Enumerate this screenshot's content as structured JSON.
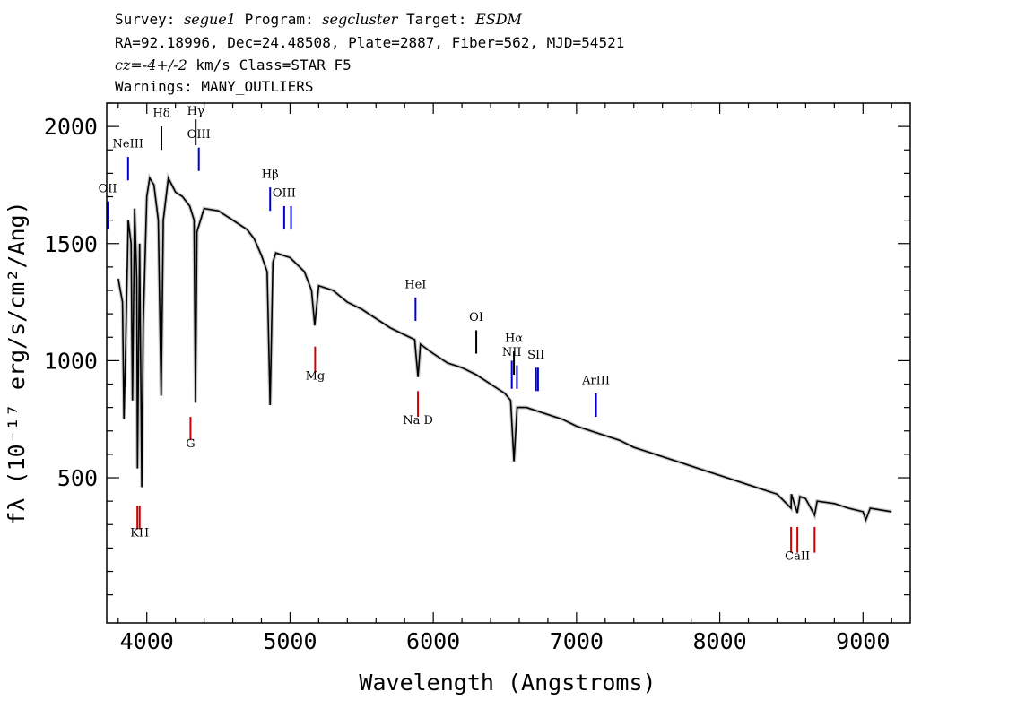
{
  "header": {
    "survey_label": "Survey:",
    "survey": "segue1",
    "program_label": "Program:",
    "program": "segcluster",
    "target_label": "Target:",
    "target": "ESDM",
    "line2": "RA=92.18996, Dec=24.48508, Plate=2887, Fiber=562, MJD=54521",
    "cz": "cz=-4+/-2",
    "cz_units": "km/s Class=STAR F5",
    "warnings": "Warnings: MANY_OUTLIERS"
  },
  "chart_data": {
    "type": "line",
    "title": "",
    "xlabel": "Wavelength (Angstroms)",
    "ylabel": "fλ (10⁻¹⁷ erg/s/cm²/Ang)",
    "xlim": [
      3720,
      9330
    ],
    "ylim": [
      -120,
      2100
    ],
    "xticks": [
      4000,
      5000,
      6000,
      7000,
      8000,
      9000
    ],
    "yticks": [
      500,
      1000,
      1500,
      2000
    ],
    "series": [
      {
        "color": "#000000",
        "points": [
          [
            3800,
            1350
          ],
          [
            3830,
            1250
          ],
          [
            3840,
            750
          ],
          [
            3850,
            1000
          ],
          [
            3870,
            1600
          ],
          [
            3890,
            1500
          ],
          [
            3900,
            830
          ],
          [
            3915,
            1650
          ],
          [
            3930,
            1350
          ],
          [
            3935,
            540
          ],
          [
            3950,
            1500
          ],
          [
            3965,
            460
          ],
          [
            3975,
            1150
          ],
          [
            4000,
            1700
          ],
          [
            4020,
            1780
          ],
          [
            4050,
            1750
          ],
          [
            4080,
            1600
          ],
          [
            4100,
            850
          ],
          [
            4115,
            1600
          ],
          [
            4150,
            1780
          ],
          [
            4200,
            1720
          ],
          [
            4250,
            1700
          ],
          [
            4300,
            1660
          ],
          [
            4330,
            1600
          ],
          [
            4340,
            820
          ],
          [
            4350,
            1550
          ],
          [
            4400,
            1650
          ],
          [
            4500,
            1640
          ],
          [
            4600,
            1600
          ],
          [
            4700,
            1560
          ],
          [
            4750,
            1520
          ],
          [
            4800,
            1450
          ],
          [
            4840,
            1380
          ],
          [
            4861,
            810
          ],
          [
            4880,
            1420
          ],
          [
            4900,
            1460
          ],
          [
            5000,
            1440
          ],
          [
            5100,
            1380
          ],
          [
            5150,
            1300
          ],
          [
            5172,
            1150
          ],
          [
            5200,
            1320
          ],
          [
            5300,
            1300
          ],
          [
            5400,
            1250
          ],
          [
            5500,
            1220
          ],
          [
            5600,
            1180
          ],
          [
            5700,
            1140
          ],
          [
            5800,
            1110
          ],
          [
            5870,
            1090
          ],
          [
            5893,
            930
          ],
          [
            5910,
            1070
          ],
          [
            6000,
            1030
          ],
          [
            6100,
            990
          ],
          [
            6200,
            970
          ],
          [
            6300,
            940
          ],
          [
            6400,
            900
          ],
          [
            6500,
            860
          ],
          [
            6540,
            830
          ],
          [
            6563,
            570
          ],
          [
            6585,
            800
          ],
          [
            6650,
            800
          ],
          [
            6700,
            790
          ],
          [
            6800,
            770
          ],
          [
            6900,
            750
          ],
          [
            7000,
            720
          ],
          [
            7100,
            700
          ],
          [
            7200,
            680
          ],
          [
            7300,
            660
          ],
          [
            7400,
            630
          ],
          [
            7500,
            610
          ],
          [
            7600,
            590
          ],
          [
            7700,
            570
          ],
          [
            7800,
            550
          ],
          [
            7900,
            530
          ],
          [
            8000,
            510
          ],
          [
            8100,
            490
          ],
          [
            8200,
            470
          ],
          [
            8300,
            450
          ],
          [
            8400,
            430
          ],
          [
            8498,
            370
          ],
          [
            8500,
            430
          ],
          [
            8542,
            350
          ],
          [
            8560,
            420
          ],
          [
            8600,
            410
          ],
          [
            8662,
            340
          ],
          [
            8680,
            400
          ],
          [
            8800,
            390
          ],
          [
            8900,
            370
          ],
          [
            9000,
            355
          ],
          [
            9020,
            320
          ],
          [
            9050,
            370
          ],
          [
            9100,
            365
          ],
          [
            9200,
            355
          ]
        ]
      }
    ],
    "lines": [
      {
        "name": "OII",
        "x": 3727,
        "kind": "emission",
        "color": "#0000cc",
        "y0": 1560,
        "y1": 1680,
        "label_y": 1720
      },
      {
        "name": "NeIII",
        "x": 3869,
        "kind": "emission",
        "color": "#0000cc",
        "y0": 1770,
        "y1": 1870,
        "label_y": 1910
      },
      {
        "name": "Hδ",
        "x": 4102,
        "kind": "balmer",
        "color": "#000000",
        "y0": 1900,
        "y1": 2000,
        "label_y": 2040
      },
      {
        "name": "Hγ",
        "x": 4341,
        "kind": "balmer",
        "color": "#000000",
        "y0": 1920,
        "y1": 2030,
        "label_y": 2050
      },
      {
        "name": "OIII",
        "x": 4363,
        "kind": "emission",
        "color": "#0000cc",
        "y0": 1810,
        "y1": 1910,
        "label_y": 1950
      },
      {
        "name": "Hβ",
        "x": 4861,
        "kind": "balmer",
        "color": "#0000cc",
        "y0": 1640,
        "y1": 1740,
        "label_y": 1780
      },
      {
        "name": "OIII",
        "x": 4959,
        "kind": "emission",
        "color": "#0000cc",
        "y0": 1560,
        "y1": 1660,
        "label_y": 1700
      },
      {
        "name": "",
        "x": 5007,
        "kind": "emission",
        "color": "#0000cc",
        "y0": 1560,
        "y1": 1660
      },
      {
        "name": "Mg",
        "x": 5175,
        "kind": "absorption",
        "color": "#cc0000",
        "y0": 950,
        "y1": 1060,
        "label_y": 920
      },
      {
        "name": "HeI",
        "x": 5876,
        "kind": "emission",
        "color": "#0000cc",
        "y0": 1170,
        "y1": 1270,
        "label_y": 1310
      },
      {
        "name": "Na D",
        "x": 5893,
        "kind": "absorption",
        "color": "#cc0000",
        "y0": 760,
        "y1": 870,
        "label_y": 730
      },
      {
        "name": "OI",
        "x": 6300,
        "kind": "emission",
        "color": "#000000",
        "y0": 1030,
        "y1": 1130,
        "label_y": 1170
      },
      {
        "name": "NII",
        "x": 6548,
        "kind": "emission",
        "color": "#0000cc",
        "y0": 880,
        "y1": 1000,
        "label_y": 1020
      },
      {
        "name": "Hα",
        "x": 6563,
        "kind": "balmer",
        "color": "#000000",
        "y0": 940,
        "y1": 1040,
        "label_y": 1080
      },
      {
        "name": "",
        "x": 6584,
        "kind": "emission",
        "color": "#0000cc",
        "y0": 880,
        "y1": 980
      },
      {
        "name": "SII",
        "x": 6717,
        "kind": "emission",
        "color": "#0000cc",
        "y0": 870,
        "y1": 970,
        "label_y": 1010
      },
      {
        "name": "",
        "x": 6731,
        "kind": "emission",
        "color": "#0000cc",
        "y0": 870,
        "y1": 970
      },
      {
        "name": "ArIII",
        "x": 7136,
        "kind": "emission",
        "color": "#0000cc",
        "y0": 760,
        "y1": 860,
        "label_y": 900
      },
      {
        "name": "G",
        "x": 4305,
        "kind": "absorption",
        "color": "#cc0000",
        "y0": 660,
        "y1": 760,
        "label_y": 630
      },
      {
        "name": "",
        "x": 3934,
        "kind": "absorption",
        "color": "#cc0000",
        "y0": 280,
        "y1": 380
      },
      {
        "name": "KH",
        "x": 3950,
        "kind": "absorption",
        "color": "#cc0000",
        "y0": 280,
        "y1": 380,
        "label_y": 250
      },
      {
        "name": "",
        "x": 8498,
        "kind": "absorption",
        "color": "#cc0000",
        "y0": 180,
        "y1": 290
      },
      {
        "name": "CaII",
        "x": 8542,
        "kind": "absorption",
        "color": "#cc0000",
        "y0": 180,
        "y1": 290,
        "label_y": 150
      },
      {
        "name": "",
        "x": 8662,
        "kind": "absorption",
        "color": "#cc0000",
        "y0": 180,
        "y1": 290
      }
    ]
  }
}
